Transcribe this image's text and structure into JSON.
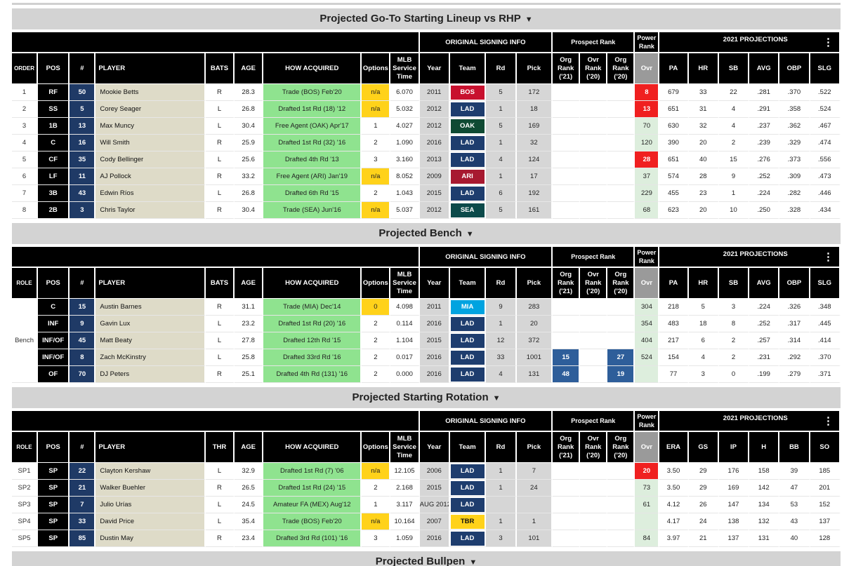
{
  "sections": {
    "lineup": {
      "title": "Projected Go-To Starting Lineup vs RHP",
      "caret": "▼",
      "first_col": "ORDER",
      "bats_col": "BATS",
      "group_signing": "ORIGINAL SIGNING INFO",
      "group_prospect": "Prospect Rank",
      "group_power": "Power Rank",
      "group_proj": "2021 PROJECTIONS",
      "proj_cols": [
        "PA",
        "HR",
        "SB",
        "AVG",
        "OBP",
        "SLG"
      ],
      "rows": [
        {
          "order": "1",
          "pos": "RF",
          "num": "50",
          "player": "Mookie Betts",
          "bats": "R",
          "age": "28.3",
          "acq": "Trade (BOS) Feb'20",
          "opt": "n/a",
          "svc": "6.070",
          "year": "2011",
          "team": "BOS",
          "team_color": "#c8102e",
          "rd": "5",
          "pick": "172",
          "ovr": "8",
          "ovr_red": true,
          "p": [
            "679",
            "33",
            "22",
            ".281",
            ".370",
            ".522"
          ]
        },
        {
          "order": "2",
          "pos": "SS",
          "num": "5",
          "player": "Corey Seager",
          "bats": "L",
          "age": "26.8",
          "acq": "Drafted 1st Rd (18) '12",
          "opt": "n/a",
          "svc": "5.032",
          "year": "2012",
          "team": "LAD",
          "team_color": "#1e3d6e",
          "rd": "1",
          "pick": "18",
          "ovr": "13",
          "ovr_red": true,
          "p": [
            "651",
            "31",
            "4",
            ".291",
            ".358",
            ".524"
          ]
        },
        {
          "order": "3",
          "pos": "1B",
          "num": "13",
          "player": "Max Muncy",
          "bats": "L",
          "age": "30.4",
          "acq": "Free Agent (OAK) Apr'17",
          "opt": "1",
          "svc": "4.027",
          "year": "2012",
          "team": "OAK",
          "team_color": "#0f4a33",
          "rd": "5",
          "pick": "169",
          "ovr": "70",
          "ovr_red": false,
          "p": [
            "630",
            "32",
            "4",
            ".237",
            ".362",
            ".467"
          ]
        },
        {
          "order": "4",
          "pos": "C",
          "num": "16",
          "player": "Will Smith",
          "bats": "R",
          "age": "25.9",
          "acq": "Drafted 1st Rd (32) '16",
          "opt": "2",
          "svc": "1.090",
          "year": "2016",
          "team": "LAD",
          "team_color": "#1e3d6e",
          "rd": "1",
          "pick": "32",
          "ovr": "120",
          "ovr_red": false,
          "p": [
            "390",
            "20",
            "2",
            ".239",
            ".329",
            ".474"
          ]
        },
        {
          "order": "5",
          "pos": "CF",
          "num": "35",
          "player": "Cody Bellinger",
          "bats": "L",
          "age": "25.6",
          "acq": "Drafted 4th Rd '13",
          "opt": "3",
          "svc": "3.160",
          "year": "2013",
          "team": "LAD",
          "team_color": "#1e3d6e",
          "rd": "4",
          "pick": "124",
          "ovr": "28",
          "ovr_red": true,
          "p": [
            "651",
            "40",
            "15",
            ".276",
            ".373",
            ".556"
          ]
        },
        {
          "order": "6",
          "pos": "LF",
          "num": "11",
          "player": "AJ Pollock",
          "bats": "R",
          "age": "33.2",
          "acq": "Free Agent (ARI) Jan'19",
          "opt": "n/a",
          "svc": "8.052",
          "year": "2009",
          "team": "ARI",
          "team_color": "#a71930",
          "rd": "1",
          "pick": "17",
          "ovr": "37",
          "ovr_red": false,
          "p": [
            "574",
            "28",
            "9",
            ".252",
            ".309",
            ".473"
          ]
        },
        {
          "order": "7",
          "pos": "3B",
          "num": "43",
          "player": "Edwin Ríos",
          "bats": "L",
          "age": "26.8",
          "acq": "Drafted 6th Rd '15",
          "opt": "2",
          "svc": "1.043",
          "year": "2015",
          "team": "LAD",
          "team_color": "#1e3d6e",
          "rd": "6",
          "pick": "192",
          "ovr": "229",
          "ovr_red": false,
          "p": [
            "455",
            "23",
            "1",
            ".224",
            ".282",
            ".446"
          ]
        },
        {
          "order": "8",
          "pos": "2B",
          "num": "3",
          "player": "Chris Taylor",
          "bats": "R",
          "age": "30.4",
          "acq": "Trade (SEA) Jun'16",
          "opt": "n/a",
          "svc": "5.037",
          "year": "2012",
          "team": "SEA",
          "team_color": "#0c4a4a",
          "rd": "5",
          "pick": "161",
          "ovr": "68",
          "ovr_red": false,
          "p": [
            "623",
            "20",
            "10",
            ".250",
            ".328",
            ".434"
          ]
        }
      ]
    },
    "bench": {
      "title": "Projected Bench",
      "caret": "▼",
      "first_col": "ROLE",
      "bats_col": "BATS",
      "role_label": "Bench",
      "group_signing": "ORIGINAL SIGNING INFO",
      "group_prospect": "Prospect Rank",
      "group_power": "Power Rank",
      "group_proj": "2021 PROJECTIONS",
      "proj_cols": [
        "PA",
        "HR",
        "SB",
        "AVG",
        "OBP",
        "SLG"
      ],
      "rows": [
        {
          "pos": "C",
          "num": "15",
          "player": "Austin Barnes",
          "bats": "R",
          "age": "31.1",
          "acq": "Trade (MIA) Dec'14",
          "opt": "0",
          "svc": "4.098",
          "year": "2011",
          "team": "MIA",
          "team_color": "#00a3e0",
          "rd": "9",
          "pick": "283",
          "pr21": "",
          "pr20": "",
          "org20": "",
          "ovr": "304",
          "p": [
            "218",
            "5",
            "3",
            ".224",
            ".326",
            ".348"
          ]
        },
        {
          "pos": "INF",
          "num": "9",
          "player": "Gavin Lux",
          "bats": "L",
          "age": "23.2",
          "acq": "Drafted 1st Rd (20) '16",
          "opt": "2",
          "svc": "0.114",
          "year": "2016",
          "team": "LAD",
          "team_color": "#1e3d6e",
          "rd": "1",
          "pick": "20",
          "pr21": "",
          "pr20": "",
          "org20": "",
          "ovr": "354",
          "p": [
            "483",
            "18",
            "8",
            ".252",
            ".317",
            ".445"
          ]
        },
        {
          "pos": "INF/OF",
          "num": "45",
          "player": "Matt Beaty",
          "bats": "L",
          "age": "27.8",
          "acq": "Drafted 12th Rd '15",
          "opt": "2",
          "svc": "1.104",
          "year": "2015",
          "team": "LAD",
          "team_color": "#1e3d6e",
          "rd": "12",
          "pick": "372",
          "pr21": "",
          "pr20": "",
          "org20": "",
          "ovr": "404",
          "p": [
            "217",
            "6",
            "2",
            ".257",
            ".314",
            ".414"
          ]
        },
        {
          "pos": "INF/OF",
          "num": "8",
          "player": "Zach McKinstry",
          "bats": "L",
          "age": "25.8",
          "acq": "Drafted 33rd Rd '16",
          "opt": "2",
          "svc": "0.017",
          "year": "2016",
          "team": "LAD",
          "team_color": "#1e3d6e",
          "rd": "33",
          "pick": "1001",
          "pr21": "15",
          "pr20": "",
          "org20": "27",
          "ovr": "524",
          "p": [
            "154",
            "4",
            "2",
            ".231",
            ".292",
            ".370"
          ]
        },
        {
          "pos": "OF",
          "num": "70",
          "player": "DJ Peters",
          "bats": "R",
          "age": "25.1",
          "acq": "Drafted 4th Rd (131) '16",
          "opt": "2",
          "svc": "0.000",
          "year": "2016",
          "team": "LAD",
          "team_color": "#1e3d6e",
          "rd": "4",
          "pick": "131",
          "pr21": "48",
          "pr20": "",
          "org20": "19",
          "ovr": "",
          "p": [
            "77",
            "3",
            "0",
            ".199",
            ".279",
            ".371"
          ]
        }
      ]
    },
    "rotation": {
      "title": "Projected Starting Rotation",
      "caret": "▼",
      "first_col": "ROLE",
      "bats_col": "THR",
      "group_signing": "ORIGINAL SIGNING INFO",
      "group_prospect": "Prospect Rank",
      "group_power": "Power Rank",
      "group_proj": "2021 PROJECTIONS",
      "proj_cols": [
        "ERA",
        "GS",
        "IP",
        "H",
        "BB",
        "SO"
      ],
      "rows": [
        {
          "role": "SP1",
          "pos": "SP",
          "num": "22",
          "player": "Clayton Kershaw",
          "bats": "L",
          "age": "32.9",
          "acq": "Drafted 1st Rd (7) '06",
          "opt": "n/a",
          "svc": "12.105",
          "year": "2006",
          "team": "LAD",
          "team_color": "#1e3d6e",
          "rd": "1",
          "pick": "7",
          "ovr": "20",
          "ovr_red": true,
          "p": [
            "3.50",
            "29",
            "176",
            "158",
            "39",
            "185"
          ]
        },
        {
          "role": "SP2",
          "pos": "SP",
          "num": "21",
          "player": "Walker Buehler",
          "bats": "R",
          "age": "26.5",
          "acq": "Drafted 1st Rd (24) '15",
          "opt": "2",
          "svc": "2.168",
          "year": "2015",
          "team": "LAD",
          "team_color": "#1e3d6e",
          "rd": "1",
          "pick": "24",
          "ovr": "73",
          "ovr_red": false,
          "p": [
            "3.50",
            "29",
            "169",
            "142",
            "47",
            "201"
          ]
        },
        {
          "role": "SP3",
          "pos": "SP",
          "num": "7",
          "player": "Julio Urías",
          "bats": "L",
          "age": "24.5",
          "acq": "Amateur FA (MEX) Aug'12",
          "opt": "1",
          "svc": "3.117",
          "year": "AUG 2012",
          "team": "LAD",
          "team_color": "#1e3d6e",
          "rd": "",
          "pick": "",
          "ovr": "61",
          "ovr_red": false,
          "p": [
            "4.12",
            "26",
            "147",
            "134",
            "53",
            "152"
          ]
        },
        {
          "role": "SP4",
          "pos": "SP",
          "num": "33",
          "player": "David Price",
          "bats": "L",
          "age": "35.4",
          "acq": "Trade (BOS) Feb'20",
          "opt": "n/a",
          "svc": "10.164",
          "year": "2007",
          "team": "TBR",
          "team_color": "#ffd21a",
          "rd": "1",
          "pick": "1",
          "ovr": "",
          "ovr_red": false,
          "p": [
            "4.17",
            "24",
            "138",
            "132",
            "43",
            "137"
          ]
        },
        {
          "role": "SP5",
          "pos": "SP",
          "num": "85",
          "player": "Dustin May",
          "bats": "R",
          "age": "23.4",
          "acq": "Drafted 3rd Rd (101) '16",
          "opt": "3",
          "svc": "1.059",
          "year": "2016",
          "team": "LAD",
          "team_color": "#1e3d6e",
          "rd": "3",
          "pick": "101",
          "ovr": "84",
          "ovr_red": false,
          "p": [
            "3.97",
            "21",
            "137",
            "131",
            "40",
            "128"
          ]
        }
      ]
    },
    "bullpen": {
      "title": "Projected Bullpen",
      "caret": "▼"
    }
  },
  "common_headers": {
    "pos": "POS",
    "num": "#",
    "player": "PLAYER",
    "age": "AGE",
    "acq": "HOW ACQUIRED",
    "options": "Options",
    "svc": "MLB Service Time",
    "year": "Year",
    "team": "Team",
    "rd": "Rd",
    "pick": "Pick",
    "org21": "Org Rank ('21)",
    "ovr20": "Ovr Rank ('20)",
    "org20": "Org Rank ('20)",
    "ovr": "Ovr",
    "menu": "⋮"
  }
}
